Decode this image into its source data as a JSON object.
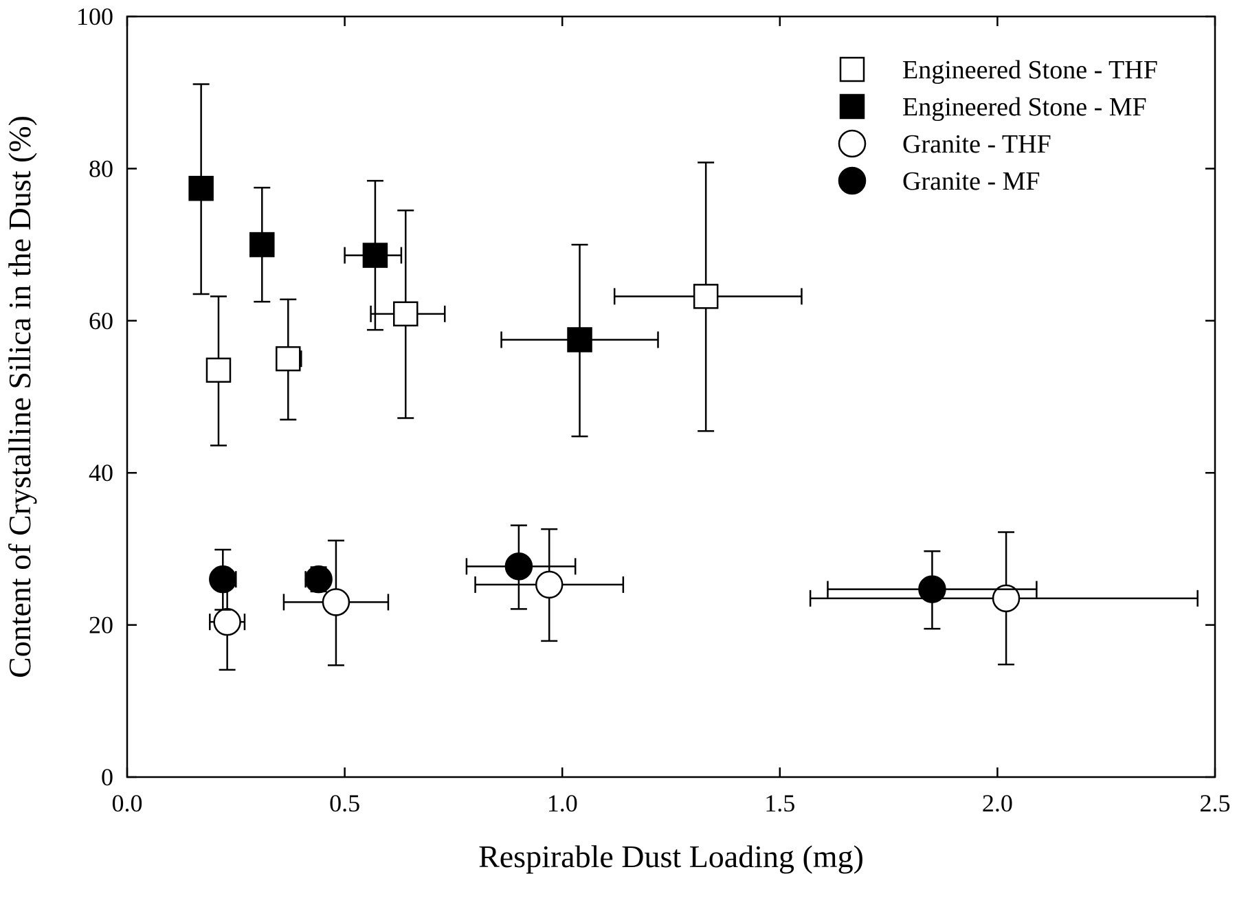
{
  "chart_data": {
    "type": "scatter",
    "title": "",
    "xlabel": "Respirable Dust Loading (mg)",
    "ylabel": "Content of Crystalline Silica in the Dust (%)",
    "xlim": [
      0.0,
      2.5
    ],
    "ylim": [
      0,
      100
    ],
    "xticks": [
      0.0,
      0.5,
      1.0,
      1.5,
      2.0,
      2.5
    ],
    "xtick_labels": [
      "0.0",
      "0.5",
      "1.0",
      "1.5",
      "2.0",
      "2.5"
    ],
    "yticks": [
      0,
      20,
      40,
      60,
      80,
      100
    ],
    "ytick_labels": [
      "0",
      "20",
      "40",
      "60",
      "80",
      "100"
    ],
    "grid": false,
    "legend_position": "top-right",
    "series": [
      {
        "name": "Engineered Stone - THF",
        "marker": "square",
        "filled": false,
        "points": [
          {
            "x": 0.21,
            "y": 53.5,
            "xerr": null,
            "yerr": [
              43.6,
              63.2
            ]
          },
          {
            "x": 0.37,
            "y": 55.0,
            "xerr": [
              0.35,
              0.4
            ],
            "yerr": [
              47.0,
              62.8
            ]
          },
          {
            "x": 0.64,
            "y": 60.9,
            "xerr": [
              0.56,
              0.73
            ],
            "yerr": [
              47.2,
              74.5
            ]
          },
          {
            "x": 1.33,
            "y": 63.2,
            "xerr": [
              1.12,
              1.55
            ],
            "yerr": [
              45.5,
              80.8
            ]
          }
        ]
      },
      {
        "name": "Engineered Stone - MF",
        "marker": "square",
        "filled": true,
        "points": [
          {
            "x": 0.17,
            "y": 77.4,
            "xerr": null,
            "yerr": [
              63.5,
              91.1
            ]
          },
          {
            "x": 0.31,
            "y": 70.0,
            "xerr": null,
            "yerr": [
              62.5,
              77.5
            ]
          },
          {
            "x": 0.57,
            "y": 68.6,
            "xerr": [
              0.5,
              0.63
            ],
            "yerr": [
              58.8,
              78.4
            ]
          },
          {
            "x": 1.04,
            "y": 57.5,
            "xerr": [
              0.86,
              1.22
            ],
            "yerr": [
              44.8,
              70.0
            ]
          }
        ]
      },
      {
        "name": "Granite - THF",
        "marker": "circle",
        "filled": false,
        "points": [
          {
            "x": 0.23,
            "y": 20.4,
            "xerr": [
              0.19,
              0.27
            ],
            "yerr": [
              14.1,
              26.6
            ]
          },
          {
            "x": 0.48,
            "y": 23.0,
            "xerr": [
              0.36,
              0.6
            ],
            "yerr": [
              14.7,
              31.1
            ]
          },
          {
            "x": 0.97,
            "y": 25.3,
            "xerr": [
              0.8,
              1.14
            ],
            "yerr": [
              17.9,
              32.6
            ]
          },
          {
            "x": 2.02,
            "y": 23.5,
            "xerr": [
              1.57,
              2.46
            ],
            "yerr": [
              14.8,
              32.2
            ]
          }
        ]
      },
      {
        "name": "Granite - MF",
        "marker": "circle",
        "filled": true,
        "points": [
          {
            "x": 0.22,
            "y": 26.0,
            "xerr": [
              0.2,
              0.25
            ],
            "yerr": [
              22.0,
              29.9
            ]
          },
          {
            "x": 0.44,
            "y": 26.0,
            "xerr": [
              0.41,
              0.46
            ],
            "yerr": [
              24.4,
              27.6
            ]
          },
          {
            "x": 0.9,
            "y": 27.7,
            "xerr": [
              0.78,
              1.03
            ],
            "yerr": [
              22.1,
              33.1
            ]
          },
          {
            "x": 1.85,
            "y": 24.7,
            "xerr": [
              1.61,
              2.09
            ],
            "yerr": [
              19.5,
              29.7
            ]
          }
        ]
      }
    ]
  }
}
